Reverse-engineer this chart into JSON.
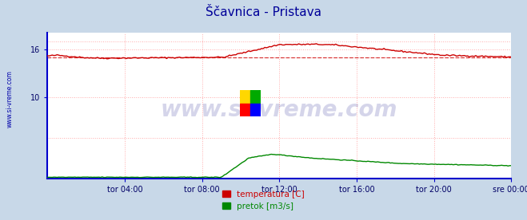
{
  "title": "Ščavnica - Pristava",
  "title_color": "#000099",
  "title_fontsize": 11,
  "fig_bg_color": "#c8d8e8",
  "plot_bg_color": "#ffffff",
  "ytick_labels": [
    "10",
    "16"
  ],
  "ytick_values": [
    10,
    16
  ],
  "ylim": [
    0,
    18
  ],
  "xlim": [
    0,
    288
  ],
  "xtick_labels": [
    "tor 04:00",
    "tor 08:00",
    "tor 12:00",
    "tor 16:00",
    "tor 20:00",
    "sre 00:00"
  ],
  "xtick_positions": [
    48,
    96,
    144,
    192,
    240,
    288
  ],
  "grid_color": "#ffaaaa",
  "watermark": "www.si-vreme.com",
  "watermark_color": "#1a1a8c",
  "temp_color": "#cc0000",
  "flow_color": "#008800",
  "avg_value": 15.0,
  "avg_line_color": "#cc0000",
  "legend_labels": [
    "temperatura [C]",
    "pretok [m3/s]"
  ],
  "legend_colors": [
    "#cc0000",
    "#008800"
  ],
  "sidebar_text": "www.si-vreme.com",
  "sidebar_color": "#0000aa",
  "axis_color": "#0000cc"
}
